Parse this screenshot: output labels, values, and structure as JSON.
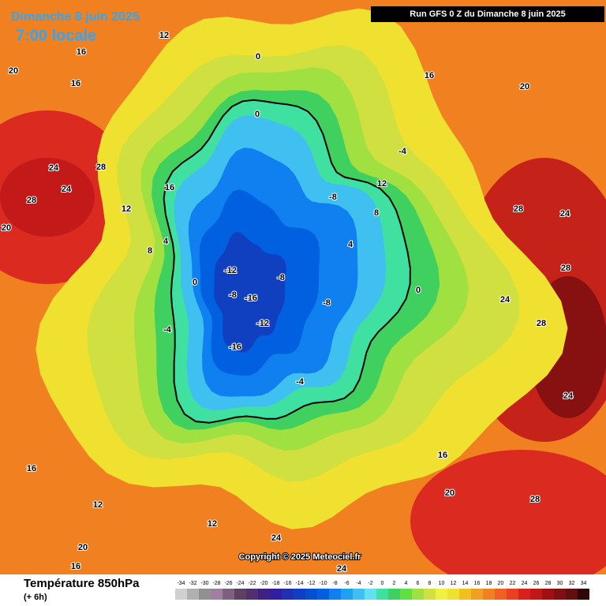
{
  "header": {
    "date": "Dimanche 8 juin 2025",
    "time": "7:00 locale",
    "run": "Run GFS 0 Z du Dimanche 8 juin 2025"
  },
  "footer": {
    "title": "Température 850hPa",
    "step": "(+ 6h)",
    "copyright": "Copyright © 2025 Meteociel.fr"
  },
  "legend": {
    "scale": [
      -34,
      -32,
      -30,
      -28,
      -26,
      -24,
      -22,
      -20,
      -18,
      -16,
      -14,
      -12,
      -10,
      -8,
      -6,
      -4,
      -2,
      0,
      2,
      4,
      6,
      8,
      10,
      12,
      14,
      16,
      18,
      20,
      22,
      24,
      26,
      28,
      30,
      32,
      34
    ],
    "colors": [
      "#d0d0d0",
      "#b0b0b0",
      "#909090",
      "#a080a0",
      "#806080",
      "#604060",
      "#503070",
      "#402080",
      "#3020a0",
      "#2030b0",
      "#1040c0",
      "#0050d0",
      "#0060e0",
      "#1080f0",
      "#20a0f0",
      "#40c0f0",
      "#60e0f0",
      "#40e0a0",
      "#40d060",
      "#60e040",
      "#a0e040",
      "#d0e040",
      "#f0f040",
      "#f0e030",
      "#f0c020",
      "#f0a020",
      "#f08020",
      "#f06020",
      "#e84020",
      "#d82020",
      "#c01818",
      "#a01010",
      "#801010",
      "#601010",
      "#300808"
    ]
  },
  "map": {
    "labels": [
      12,
      16,
      16,
      20,
      24,
      28,
      24,
      28,
      20,
      16,
      12,
      8,
      4,
      0,
      -4,
      -8,
      -12,
      -16,
      -12,
      -16,
      -8,
      -8,
      -4,
      -8,
      0,
      0,
      -4,
      0,
      4,
      8,
      12,
      16,
      20,
      28,
      24,
      28,
      24,
      28,
      24,
      20,
      28,
      24,
      16,
      12,
      20,
      16,
      12,
      16,
      24
    ]
  }
}
